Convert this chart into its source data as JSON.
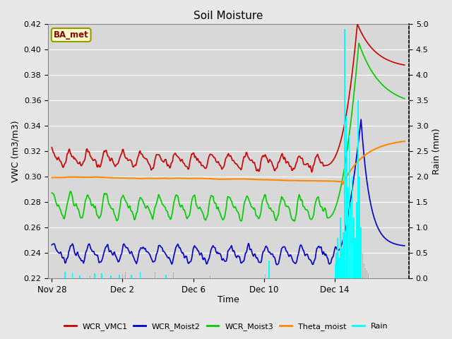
{
  "title": "Soil Moisture",
  "ylabel_left": "VWC (m3/m3)",
  "ylabel_right": "Rain (mm)",
  "xlabel": "Time",
  "ylim_left": [
    0.22,
    0.42
  ],
  "ylim_right": [
    0.0,
    5.0
  ],
  "yticks_left": [
    0.22,
    0.24,
    0.26,
    0.28,
    0.3,
    0.32,
    0.34,
    0.36,
    0.38,
    0.4,
    0.42
  ],
  "yticks_right": [
    0.0,
    0.5,
    1.0,
    1.5,
    2.0,
    2.5,
    3.0,
    3.5,
    4.0,
    4.5,
    5.0
  ],
  "xtick_labels": [
    "Nov 28",
    "Dec 2",
    "Dec 6",
    "Dec 10",
    "Dec 14"
  ],
  "xtick_positions": [
    0,
    96,
    192,
    288,
    384
  ],
  "total_points": 480,
  "spike_start": 390,
  "spike_peak": 415,
  "bg_color": "#e8e8e8",
  "plot_bg": "#d8d8d8",
  "grid_color": "#c8c8c8",
  "legend_items": [
    {
      "label": "WCR_VMC1",
      "color": "#cc0000"
    },
    {
      "label": "WCR_Moist2",
      "color": "#0000cc"
    },
    {
      "label": "WCR_Moist3",
      "color": "#00cc00"
    },
    {
      "label": "Theta_moist",
      "color": "#ff8800"
    },
    {
      "label": "Rain",
      "color": "cyan"
    }
  ],
  "box_label": "BA_met",
  "box_facecolor": "#ffffcc",
  "box_edgecolor": "#999900",
  "box_textcolor": "#8b0000"
}
